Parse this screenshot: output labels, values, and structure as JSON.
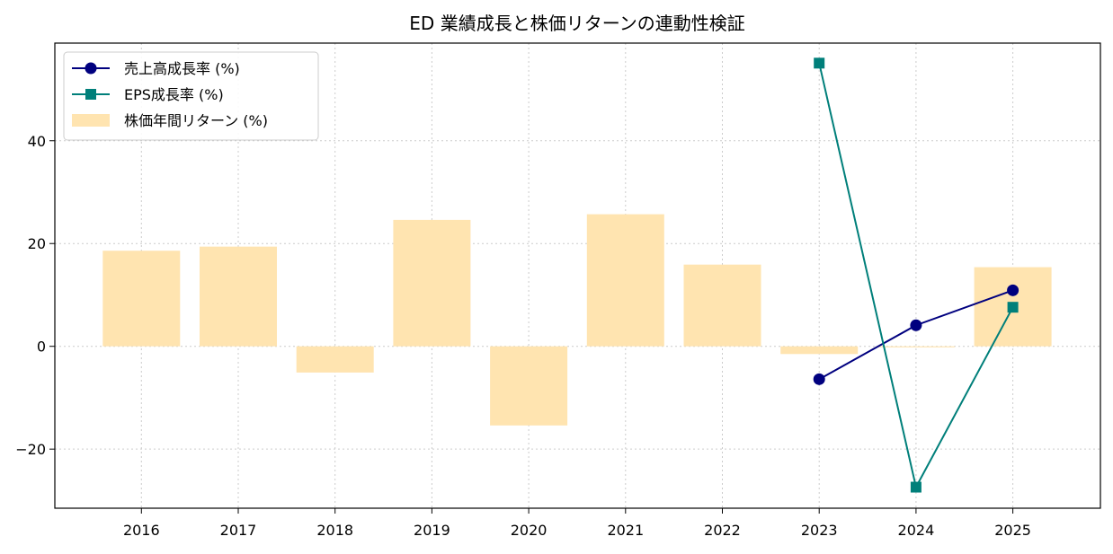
{
  "chart_data": {
    "type": "bar+line",
    "title": "ED 業績成長と株価リターンの連動性検証",
    "xlabel": "",
    "ylabel": "",
    "categories": [
      "2016",
      "2017",
      "2018",
      "2019",
      "2020",
      "2021",
      "2022",
      "2023",
      "2024",
      "2025"
    ],
    "y_ticks": [
      -20,
      0,
      20,
      40
    ],
    "ylim": [
      -31.5,
      59
    ],
    "grid": true,
    "legend_position": "top-left",
    "bars": {
      "name": "株価年間リターン (%)",
      "color": "#ffe4b0",
      "values": [
        18.6,
        19.4,
        -5.1,
        24.6,
        -15.4,
        25.7,
        15.9,
        -1.5,
        -0.2,
        15.4
      ]
    },
    "series": [
      {
        "name": "売上高成長率 (%)",
        "color": "#00007f",
        "marker": "circle",
        "values": [
          null,
          null,
          null,
          null,
          null,
          null,
          null,
          -6.4,
          4.1,
          10.9
        ]
      },
      {
        "name": "EPS成長率 (%)",
        "color": "#007f7a",
        "marker": "square",
        "values": [
          null,
          null,
          null,
          null,
          null,
          null,
          null,
          55.1,
          -27.4,
          7.6
        ]
      }
    ]
  }
}
